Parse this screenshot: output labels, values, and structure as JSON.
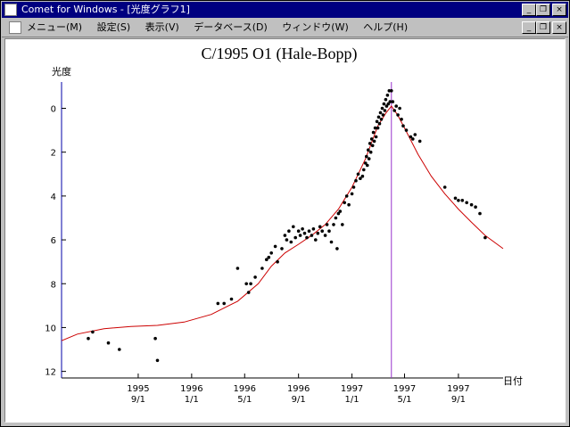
{
  "window": {
    "title": "Comet for Windows - [光度グラフ1]",
    "controls": [
      "_",
      "❐",
      "×"
    ]
  },
  "menubar": {
    "items": [
      "メニュー(M)",
      "設定(S)",
      "表示(V)",
      "データベース(D)",
      "ウィンドウ(W)",
      "ヘルプ(H)"
    ],
    "controls": [
      "_",
      "❐",
      "×"
    ]
  },
  "colors": {
    "titlebar": "#000080",
    "curve": "#cc0000",
    "perihelion_line": "#9933cc",
    "axis": "#0000aa"
  },
  "chart_data": {
    "type": "scatter",
    "title": "C/1995 O1 (Hale-Bopp)",
    "ylabel": "光度",
    "xlabel": "日付",
    "ylim": [
      -1.2,
      12.3
    ],
    "y_inverted": true,
    "x_range": [
      "1995-03-10",
      "1997-12-12"
    ],
    "y_ticks": [
      0,
      2,
      4,
      6,
      8,
      10,
      12
    ],
    "x_ticks": [
      {
        "date": "1995-09-01",
        "year": "1995",
        "md": "9/1"
      },
      {
        "date": "1996-01-01",
        "year": "1996",
        "md": "1/1"
      },
      {
        "date": "1996-05-01",
        "year": "1996",
        "md": "5/1"
      },
      {
        "date": "1996-09-01",
        "year": "1996",
        "md": "9/1"
      },
      {
        "date": "1997-01-01",
        "year": "1997",
        "md": "1/1"
      },
      {
        "date": "1997-05-01",
        "year": "1997",
        "md": "5/1"
      },
      {
        "date": "1997-09-01",
        "year": "1997",
        "md": "9/1"
      }
    ],
    "perihelion_date": "1997-04-01",
    "curve": [
      [
        "1995-03-10",
        10.6
      ],
      [
        "1995-04-15",
        10.3
      ],
      [
        "1995-06-15",
        10.05
      ],
      [
        "1995-08-15",
        9.95
      ],
      [
        "1995-10-15",
        9.9
      ],
      [
        "1995-12-15",
        9.75
      ],
      [
        "1996-02-15",
        9.4
      ],
      [
        "1996-04-15",
        8.8
      ],
      [
        "1996-06-01",
        8.0
      ],
      [
        "1996-07-01",
        7.2
      ],
      [
        "1996-08-01",
        6.6
      ],
      [
        "1996-09-01",
        6.2
      ],
      [
        "1996-10-01",
        5.8
      ],
      [
        "1996-11-01",
        5.3
      ],
      [
        "1996-12-01",
        4.6
      ],
      [
        "1997-01-01",
        3.6
      ],
      [
        "1997-02-01",
        2.3
      ],
      [
        "1997-03-01",
        0.8
      ],
      [
        "1997-03-20",
        0.2
      ],
      [
        "1997-04-01",
        -0.1
      ],
      [
        "1997-04-15",
        0.3
      ],
      [
        "1997-05-01",
        0.9
      ],
      [
        "1997-06-01",
        2.1
      ],
      [
        "1997-07-01",
        3.1
      ],
      [
        "1997-08-01",
        3.9
      ],
      [
        "1997-09-01",
        4.6
      ],
      [
        "1997-10-01",
        5.2
      ],
      [
        "1997-11-01",
        5.8
      ],
      [
        "1997-12-12",
        6.4
      ]
    ],
    "points": [
      [
        "1995-05-10",
        10.5
      ],
      [
        "1995-05-20",
        10.2
      ],
      [
        "1995-06-25",
        10.7
      ],
      [
        "1995-07-20",
        11.0
      ],
      [
        "1995-10-15",
        11.5
      ],
      [
        "1995-10-10",
        10.5
      ],
      [
        "1996-03-01",
        8.9
      ],
      [
        "1996-03-15",
        8.9
      ],
      [
        "1996-04-01",
        8.7
      ],
      [
        "1996-04-15",
        7.3
      ],
      [
        "1996-05-05",
        8.0
      ],
      [
        "1996-05-10",
        8.4
      ],
      [
        "1996-05-15",
        8.0
      ],
      [
        "1996-05-25",
        7.7
      ],
      [
        "1996-06-10",
        7.3
      ],
      [
        "1996-06-20",
        6.9
      ],
      [
        "1996-06-25",
        6.8
      ],
      [
        "1996-07-01",
        6.6
      ],
      [
        "1996-07-10",
        6.3
      ],
      [
        "1996-07-15",
        7.0
      ],
      [
        "1996-07-25",
        6.4
      ],
      [
        "1996-08-01",
        5.8
      ],
      [
        "1996-08-05",
        6.0
      ],
      [
        "1996-08-10",
        5.6
      ],
      [
        "1996-08-15",
        6.1
      ],
      [
        "1996-08-20",
        5.4
      ],
      [
        "1996-08-25",
        5.9
      ],
      [
        "1996-09-01",
        5.6
      ],
      [
        "1996-09-05",
        5.8
      ],
      [
        "1996-09-10",
        5.5
      ],
      [
        "1996-09-15",
        5.7
      ],
      [
        "1996-09-20",
        5.9
      ],
      [
        "1996-09-25",
        5.6
      ],
      [
        "1996-10-01",
        5.8
      ],
      [
        "1996-10-05",
        5.5
      ],
      [
        "1996-10-10",
        6.0
      ],
      [
        "1996-10-15",
        5.7
      ],
      [
        "1996-10-20",
        5.4
      ],
      [
        "1996-10-25",
        5.6
      ],
      [
        "1996-11-01",
        5.8
      ],
      [
        "1996-11-05",
        5.3
      ],
      [
        "1996-11-10",
        5.6
      ],
      [
        "1996-11-15",
        6.1
      ],
      [
        "1996-11-20",
        5.3
      ],
      [
        "1996-11-25",
        5.0
      ],
      [
        "1996-11-28",
        6.4
      ],
      [
        "1996-12-01",
        4.8
      ],
      [
        "1996-12-05",
        4.7
      ],
      [
        "1996-12-10",
        5.3
      ],
      [
        "1996-12-15",
        4.3
      ],
      [
        "1996-12-20",
        4.0
      ],
      [
        "1996-12-25",
        4.4
      ],
      [
        "1997-01-01",
        3.9
      ],
      [
        "1997-01-05",
        3.6
      ],
      [
        "1997-01-10",
        3.3
      ],
      [
        "1997-01-15",
        3.0
      ],
      [
        "1997-01-20",
        3.2
      ],
      [
        "1997-01-25",
        3.1
      ],
      [
        "1997-01-28",
        2.8
      ],
      [
        "1997-02-01",
        2.5
      ],
      [
        "1997-02-03",
        2.2
      ],
      [
        "1997-02-05",
        2.6
      ],
      [
        "1997-02-07",
        1.9
      ],
      [
        "1997-02-09",
        2.3
      ],
      [
        "1997-02-11",
        1.6
      ],
      [
        "1997-02-13",
        2.0
      ],
      [
        "1997-02-15",
        1.4
      ],
      [
        "1997-02-17",
        1.7
      ],
      [
        "1997-02-19",
        1.1
      ],
      [
        "1997-02-21",
        1.5
      ],
      [
        "1997-02-23",
        0.9
      ],
      [
        "1997-02-25",
        1.3
      ],
      [
        "1997-02-27",
        0.6
      ],
      [
        "1997-03-01",
        0.9
      ],
      [
        "1997-03-03",
        0.4
      ],
      [
        "1997-03-05",
        0.7
      ],
      [
        "1997-03-07",
        0.2
      ],
      [
        "1997-03-09",
        0.5
      ],
      [
        "1997-03-11",
        0.0
      ],
      [
        "1997-03-13",
        0.3
      ],
      [
        "1997-03-15",
        -0.2
      ],
      [
        "1997-03-17",
        0.1
      ],
      [
        "1997-03-19",
        -0.4
      ],
      [
        "1997-03-21",
        -0.1
      ],
      [
        "1997-03-23",
        -0.6
      ],
      [
        "1997-03-25",
        -0.2
      ],
      [
        "1997-03-27",
        -0.8
      ],
      [
        "1997-03-29",
        -0.3
      ],
      [
        "1997-04-01",
        -0.8
      ],
      [
        "1997-04-04",
        -0.3
      ],
      [
        "1997-04-08",
        0.1
      ],
      [
        "1997-04-12",
        -0.1
      ],
      [
        "1997-04-16",
        0.3
      ],
      [
        "1997-04-20",
        0.0
      ],
      [
        "1997-04-24",
        0.5
      ],
      [
        "1997-04-28",
        0.8
      ],
      [
        "1997-05-05",
        1.0
      ],
      [
        "1997-05-15",
        1.3
      ],
      [
        "1997-05-20",
        1.4
      ],
      [
        "1997-05-25",
        1.2
      ],
      [
        "1997-06-05",
        1.5
      ],
      [
        "1997-08-01",
        3.6
      ],
      [
        "1997-08-25",
        4.1
      ],
      [
        "1997-09-01",
        4.2
      ],
      [
        "1997-09-10",
        4.2
      ],
      [
        "1997-09-20",
        4.3
      ],
      [
        "1997-10-01",
        4.4
      ],
      [
        "1997-10-10",
        4.5
      ],
      [
        "1997-10-20",
        4.8
      ],
      [
        "1997-11-01",
        5.9
      ]
    ]
  }
}
